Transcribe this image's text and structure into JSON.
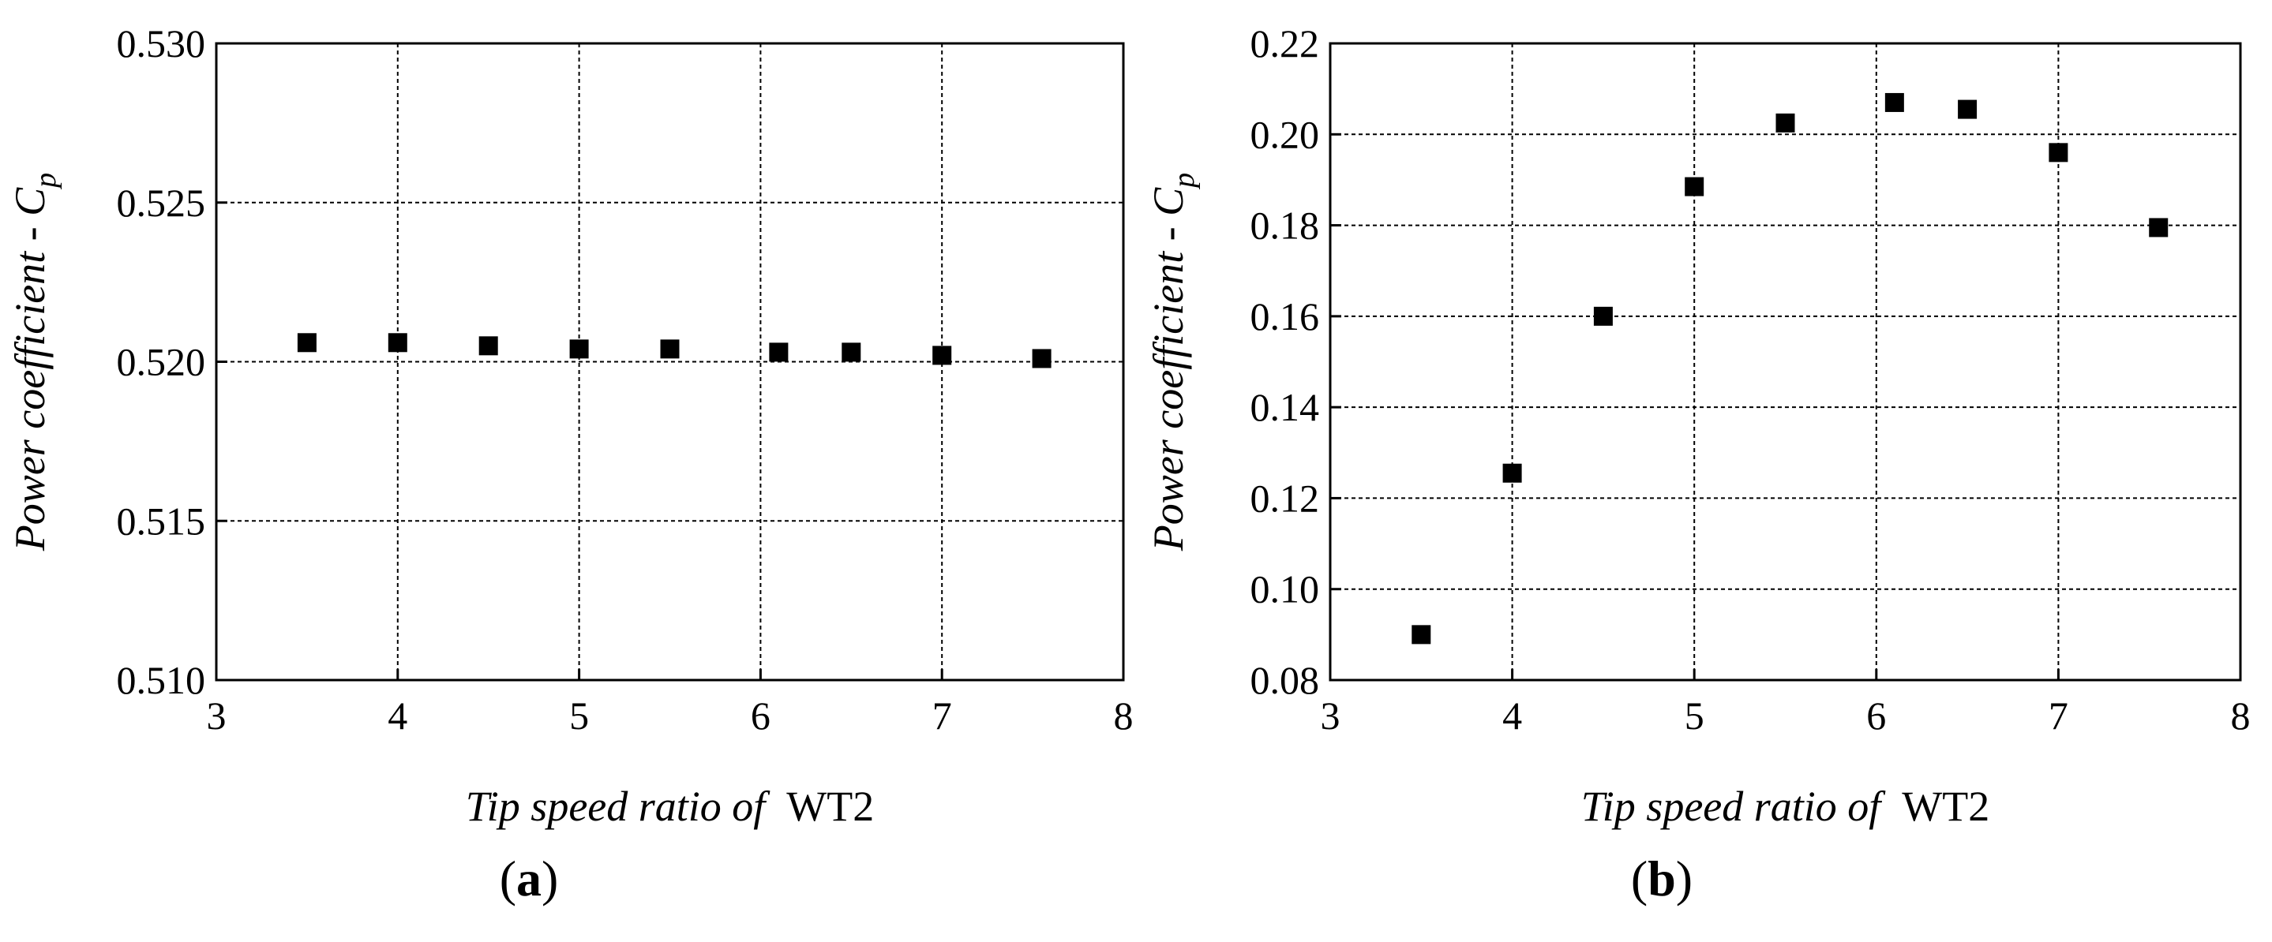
{
  "chart_data": [
    {
      "type": "scatter",
      "panel_label": "a",
      "xlabel_italic": "Tip speed ratio of",
      "xlabel_upright": "WT2",
      "ylabel": "Power coefficient - C",
      "ylabel_sub": "p",
      "xlim": [
        3,
        8
      ],
      "ylim": [
        0.51,
        0.53
      ],
      "grid": true,
      "x_ticks": [
        3,
        4,
        5,
        6,
        7,
        8
      ],
      "x_tick_labels": [
        "3",
        "4",
        "5",
        "6",
        "7",
        "8"
      ],
      "y_ticks": [
        0.51,
        0.515,
        0.52,
        0.525,
        0.53
      ],
      "y_tick_labels": [
        "0.510",
        "0.515",
        "0.520",
        "0.525",
        "0.530"
      ],
      "series": [
        {
          "name": "Cp",
          "marker": "square",
          "x": [
            3.5,
            4.0,
            4.5,
            5.0,
            5.5,
            6.1,
            6.5,
            7.0,
            7.55
          ],
          "y": [
            0.5206,
            0.5206,
            0.5205,
            0.5204,
            0.5204,
            0.5203,
            0.5203,
            0.5202,
            0.5201
          ]
        }
      ]
    },
    {
      "type": "scatter",
      "panel_label": "b",
      "xlabel_italic": "Tip speed ratio of",
      "xlabel_upright": "WT2",
      "ylabel": "Power coefficient - C",
      "ylabel_sub": "p",
      "xlim": [
        3,
        8
      ],
      "ylim": [
        0.08,
        0.22
      ],
      "grid": true,
      "x_ticks": [
        3,
        4,
        5,
        6,
        7,
        8
      ],
      "x_tick_labels": [
        "3",
        "4",
        "5",
        "6",
        "7",
        "8"
      ],
      "y_ticks": [
        0.08,
        0.1,
        0.12,
        0.14,
        0.16,
        0.18,
        0.2,
        0.22
      ],
      "y_tick_labels": [
        "0.08",
        "0.10",
        "0.12",
        "0.14",
        "0.16",
        "0.18",
        "0.20",
        "0.22"
      ],
      "series": [
        {
          "name": "Cp",
          "marker": "square",
          "x": [
            3.5,
            4.0,
            4.5,
            5.0,
            5.5,
            6.1,
            6.5,
            7.0,
            7.55
          ],
          "y": [
            0.09,
            0.1255,
            0.16,
            0.1885,
            0.2025,
            0.207,
            0.2055,
            0.196,
            0.1795
          ]
        }
      ]
    }
  ]
}
